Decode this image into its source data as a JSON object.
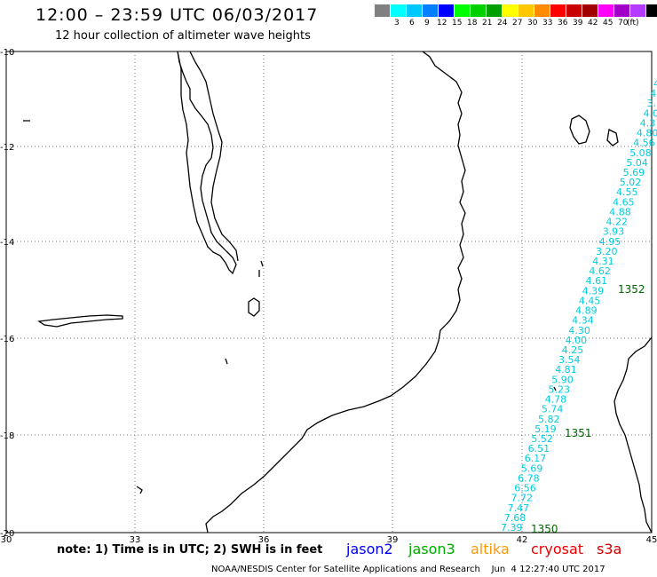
{
  "header": {
    "title": "12:00 – 23:59 UTC 06/03/2017",
    "subtitle": "12 hour collection of altimeter wave heights"
  },
  "legend": {
    "unit": "(ft)",
    "swatches": [
      {
        "color": "#808080",
        "label": ""
      },
      {
        "color": "#00ffff",
        "label": "3"
      },
      {
        "color": "#00c8ff",
        "label": "6"
      },
      {
        "color": "#0080ff",
        "label": "9"
      },
      {
        "color": "#0000ff",
        "label": "12"
      },
      {
        "color": "#00ff00",
        "label": "15"
      },
      {
        "color": "#00d000",
        "label": "18"
      },
      {
        "color": "#00a000",
        "label": "21"
      },
      {
        "color": "#ffff00",
        "label": "24"
      },
      {
        "color": "#ffc800",
        "label": "27"
      },
      {
        "color": "#ff8c00",
        "label": "30"
      },
      {
        "color": "#ff0000",
        "label": "33"
      },
      {
        "color": "#c80000",
        "label": "36"
      },
      {
        "color": "#a00000",
        "label": "39"
      },
      {
        "color": "#ff00ff",
        "label": "42"
      },
      {
        "color": "#a000c8",
        "label": "45"
      },
      {
        "color": "#b43cff",
        "label": "70"
      },
      {
        "color": "#000000",
        "label": ""
      }
    ]
  },
  "axes": {
    "lat_labels": [
      "-10",
      "-12",
      "-14",
      "-16",
      "-18",
      "-20"
    ],
    "lon_labels": [
      "30",
      "33",
      "36",
      "39",
      "42",
      "45"
    ]
  },
  "track": {
    "color": "#00ccdd",
    "values": [
      "4.",
      "4.",
      "3.",
      "4.0",
      "4.3",
      "4.80",
      "4.56",
      "5.08",
      "5.04",
      "5.69",
      "5.02",
      "4.55",
      "4.65",
      "4.88",
      "4.22",
      "3.93",
      "4.95",
      "3.20",
      "4.31",
      "4.62",
      "4.61",
      "4.39",
      "4.45",
      "4.89",
      "4.34",
      "4.30",
      "4.00",
      "4.25",
      "3.54",
      "4.81",
      "5.90",
      "5.23",
      "4.78",
      "5.74",
      "5.82",
      "5.19",
      "5.52",
      "6.51",
      "6.17",
      "5.69",
      "6.78",
      "6.56",
      "7.72",
      "7.47",
      "7.68",
      "7.39"
    ]
  },
  "pass_labels": [
    {
      "text": "1352"
    },
    {
      "text": "1351"
    },
    {
      "text": "1350"
    }
  ],
  "note": "note:  1) Time is in UTC;  2) SWH is in feet",
  "satellites": [
    {
      "name": "jason2",
      "color": "#0000ee"
    },
    {
      "name": "jason3",
      "color": "#00aa00"
    },
    {
      "name": "altika",
      "color": "#ff9900"
    },
    {
      "name": "cryosat",
      "color": "#ee0000"
    },
    {
      "name": "s3a",
      "color": "#cc0000"
    }
  ],
  "footer": "NOAA/NESDIS Center for Satellite Applications and Research    Jun  4 12:27:40 UTC 2017"
}
